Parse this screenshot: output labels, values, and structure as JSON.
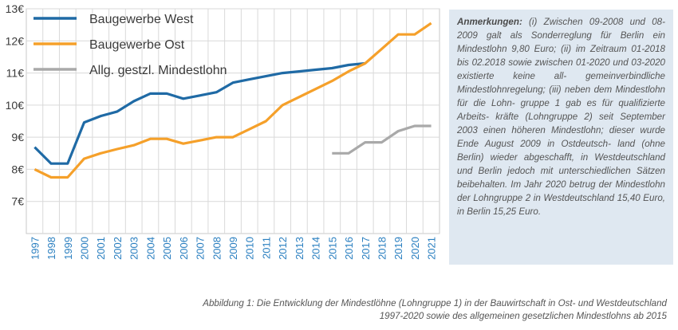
{
  "chart_data": {
    "type": "line",
    "x": [
      1997,
      1998,
      1999,
      2000,
      2001,
      2002,
      2003,
      2004,
      2005,
      2006,
      2007,
      2008,
      2009,
      2010,
      2011,
      2012,
      2013,
      2014,
      2015,
      2016,
      2017,
      2018,
      2019,
      2020,
      2021
    ],
    "x_tick_labels": [
      "1997",
      "1998",
      "1999",
      "2000",
      "2001",
      "2002",
      "2003",
      "2004",
      "2005",
      "2006",
      "2007",
      "2008",
      "2009",
      "2010",
      "2011",
      "2012",
      "2013",
      "2014",
      "2015",
      "2016",
      "2017",
      "2018",
      "2019",
      "2020",
      "2021"
    ],
    "y_tick_labels": [
      "7€",
      "8€",
      "9€",
      "10€",
      "11€",
      "12€",
      "13€"
    ],
    "y_tick_values": [
      7,
      8,
      9,
      10,
      11,
      12,
      13
    ],
    "ylim": [
      6,
      13
    ],
    "grid": true,
    "legend_position": "top-left",
    "series": [
      {
        "name": "Baugewerbe West",
        "color": "#1f6aa5",
        "points": [
          [
            1997,
            8.69
          ],
          [
            1998,
            8.18
          ],
          [
            1999,
            8.18
          ],
          [
            2000,
            9.46
          ],
          [
            2001,
            9.66
          ],
          [
            2002,
            9.8
          ],
          [
            2003,
            10.12
          ],
          [
            2004,
            10.36
          ],
          [
            2005,
            10.36
          ],
          [
            2006,
            10.2
          ],
          [
            2007,
            10.3
          ],
          [
            2008,
            10.4
          ],
          [
            2009,
            10.7
          ],
          [
            2010,
            10.8
          ],
          [
            2011,
            10.9
          ],
          [
            2012,
            11.0
          ],
          [
            2013,
            11.05
          ],
          [
            2014,
            11.1
          ],
          [
            2015,
            11.15
          ],
          [
            2016,
            11.25
          ],
          [
            2017,
            11.3
          ]
        ]
      },
      {
        "name": "Baugewerbe Ost",
        "color": "#f5a02a",
        "points": [
          [
            1997,
            8.0
          ],
          [
            1998,
            7.75
          ],
          [
            1999,
            7.75
          ],
          [
            2000,
            8.33
          ],
          [
            2001,
            8.5
          ],
          [
            2002,
            8.63
          ],
          [
            2003,
            8.75
          ],
          [
            2004,
            8.95
          ],
          [
            2005,
            8.95
          ],
          [
            2006,
            8.8
          ],
          [
            2007,
            8.9
          ],
          [
            2008,
            9.0
          ],
          [
            2009,
            9.0
          ],
          [
            2010,
            9.25
          ],
          [
            2011,
            9.5
          ],
          [
            2012,
            10.0
          ],
          [
            2013,
            10.25
          ],
          [
            2014,
            10.5
          ],
          [
            2015,
            10.75
          ],
          [
            2016,
            11.05
          ],
          [
            2017,
            11.3
          ],
          [
            2018,
            11.75
          ],
          [
            2019,
            12.2
          ],
          [
            2020,
            12.2
          ],
          [
            2021,
            12.55
          ]
        ]
      },
      {
        "name": "Allg. gestzl. Mindestlohn",
        "color": "#a9a9a9",
        "points": [
          [
            2015,
            8.5
          ],
          [
            2016,
            8.5
          ],
          [
            2017,
            8.84
          ],
          [
            2018,
            8.84
          ],
          [
            2019,
            9.19
          ],
          [
            2020,
            9.35
          ],
          [
            2021,
            9.35
          ]
        ]
      }
    ]
  },
  "notes": {
    "heading": "Anmerkungen:",
    "lines": [
      " (i) Zwischen 09-2008 und",
      "08-2009 galt als Sonderreglung für Berlin",
      "ein Mindestlohn 9,80 Euro; (ii) im Zeitraum",
      "01-2018 bis 02.2018 sowie zwischen",
      "01-2020 und 03-2020 existierte keine all-",
      "gemeinverbindliche Mindestlohnregelung;",
      "(iii) neben dem Mindestlohn für die Lohn-",
      "gruppe 1 gab es für qualifizierte Arbeits-",
      "kräfte (Lohngruppe 2) seit September",
      "2003 einen höheren Mindestlohn; dieser",
      "wurde Ende August 2009 in Ostdeutsch-",
      "land (ohne Berlin) wieder abgeschafft, in",
      "Westdeutschland und Berlin jedoch mit",
      "unterschiedlichen Sätzen beibehalten.",
      "Im Jahr 2020 betrug der Mindestlohn",
      "der Lohngruppe 2 in Westdeutschland",
      "15,40 Euro, in Berlin 15,25 Euro."
    ]
  },
  "caption": {
    "line1": "Abbildung 1: Die Entwicklung der Mindestlöhne (Lohngruppe 1) in der Bauwirtschaft in Ost- und Westdeutschland",
    "line2": "1997-2020 sowie des allgemeinen gesetzlichen Mindestlohns ab 2015"
  }
}
